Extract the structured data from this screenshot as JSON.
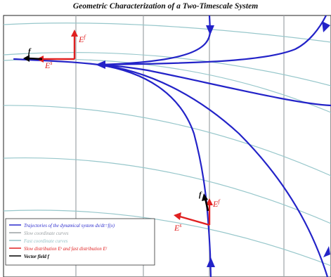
{
  "title": "Geometric Characterization of a Two-Timescale System",
  "labels": {
    "slow_basis": "E",
    "slow_sup": "s",
    "fast_basis": "E",
    "fast_sup": "f",
    "vector_field": "f"
  },
  "legend": {
    "items": [
      {
        "label": "Trajectories of the dynamical system dx/dt=f(x)",
        "color": "#2a2acd",
        "style": "solid"
      },
      {
        "label": "Slow coordinate curves",
        "color": "#9aa0a3",
        "style": "solid"
      },
      {
        "label": "Fast coordinate curves",
        "color": "#94c2c6",
        "style": "solid"
      },
      {
        "label": "Slow distribution Eˢ and fast distribution Eᶠ",
        "color": "#e02020",
        "style": "solid"
      },
      {
        "label": "Vector field f",
        "color": "#000000",
        "style": "solid"
      }
    ]
  },
  "colors": {
    "trajectory": "#2323c8",
    "slow_grid": "#9ea3a6",
    "fast_grid": "#97c7cb",
    "basis": "#e02020",
    "vector": "#000000"
  }
}
